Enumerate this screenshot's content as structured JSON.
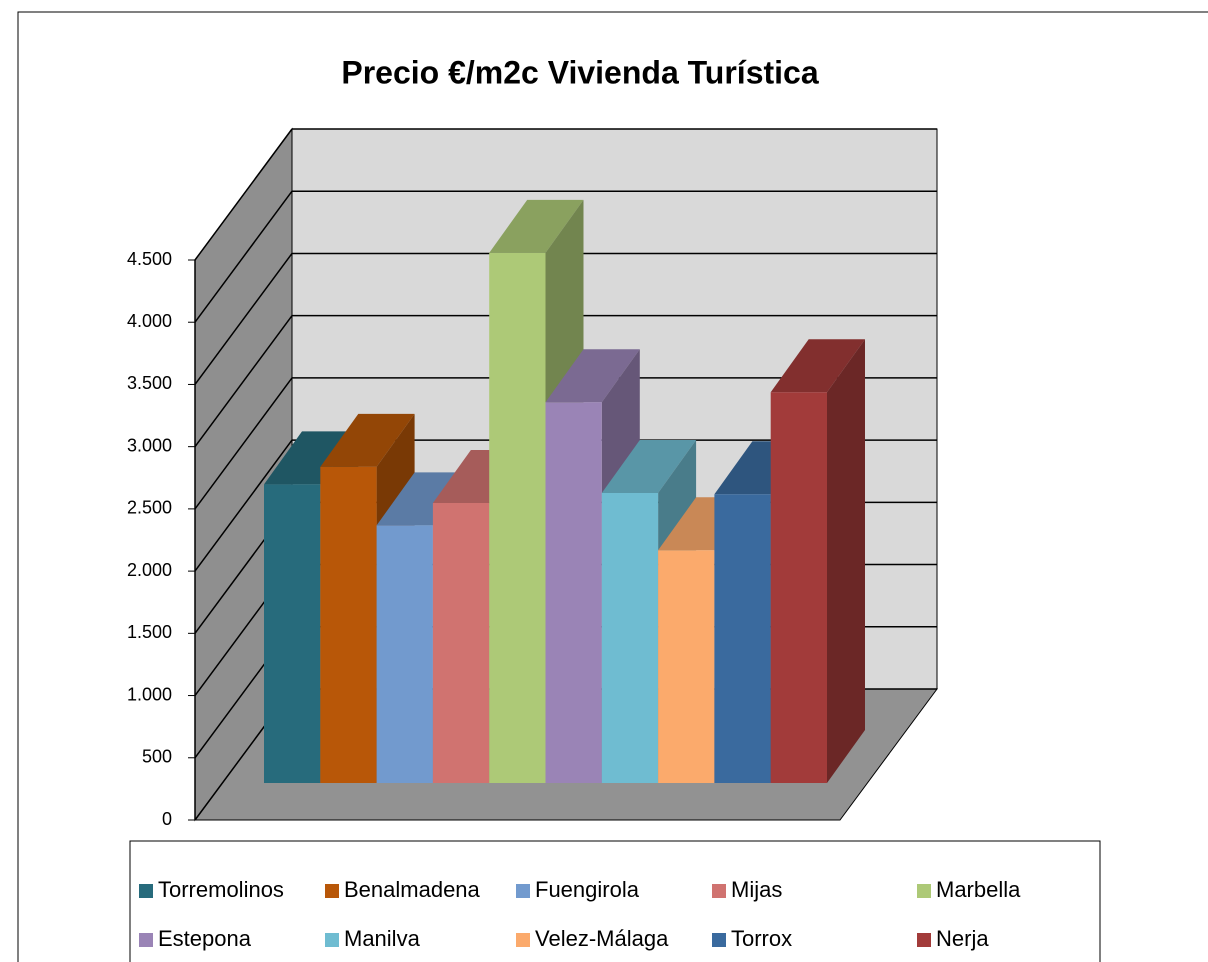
{
  "chart_data": {
    "type": "bar3d",
    "title": "Precio €/m2c Vivienda Turística",
    "categories": [
      "Torremolinos",
      "Benalmadena",
      "Fuengirola",
      "Mijas",
      "Marbella",
      "Estepona",
      "Manilva",
      "Velez-Málaga",
      "Torrox",
      "Nerja"
    ],
    "values": [
      2400,
      2540,
      2070,
      2250,
      4260,
      3060,
      2330,
      1870,
      2320,
      3140
    ],
    "colors": [
      "#276b7c",
      "#b85708",
      "#729ace",
      "#d07370",
      "#adc977",
      "#9a84b6",
      "#6fbcd1",
      "#fbaa6c",
      "#3a6a9e",
      "#a23b3a"
    ],
    "ylim": [
      0,
      4500
    ],
    "yticks": [
      0,
      500,
      {
        "value": 1000,
        "label": "1.000"
      },
      {
        "value": 1500,
        "label": "1.500"
      },
      {
        "value": 2000,
        "label": "2.000"
      },
      {
        "value": 2500,
        "label": "2.500"
      },
      {
        "value": 3000,
        "label": "3.000"
      },
      {
        "value": 3500,
        "label": "3.500"
      },
      {
        "value": 4000,
        "label": "4.000"
      },
      {
        "value": 4500,
        "label": "4.500"
      }
    ],
    "grid": true,
    "legend": "bottom"
  }
}
